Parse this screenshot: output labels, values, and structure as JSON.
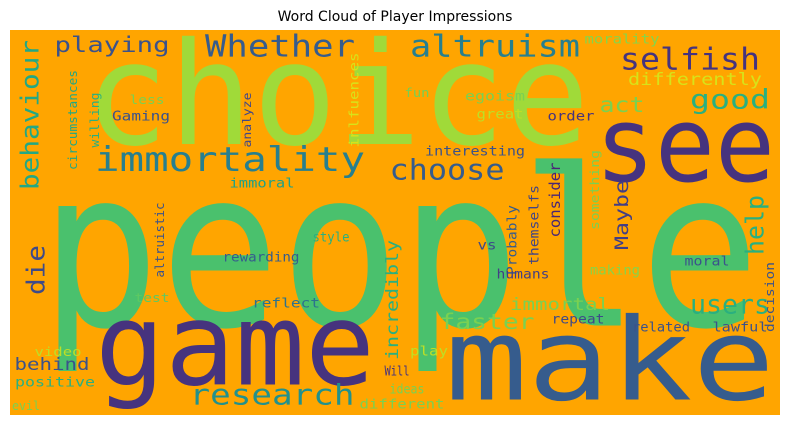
{
  "chart_data": {
    "type": "wordcloud",
    "title": "Word Cloud of Player Impressions",
    "background": "#ffa500",
    "words": [
      {
        "text": "people",
        "weight": 230,
        "color": "#4ac16d"
      },
      {
        "text": "choice",
        "weight": 150,
        "color": "#a0da39"
      },
      {
        "text": "game",
        "weight": 120,
        "color": "#46337e"
      },
      {
        "text": "make",
        "weight": 120,
        "color": "#365c8d"
      },
      {
        "text": "see",
        "weight": 110,
        "color": "#46337e"
      },
      {
        "text": "immortality",
        "weight": 36,
        "color": "#277f8e"
      },
      {
        "text": "Whether",
        "weight": 32,
        "color": "#365c8d"
      },
      {
        "text": "altruism",
        "weight": 32,
        "color": "#277f8e"
      },
      {
        "text": "selfish",
        "weight": 32,
        "color": "#46337e"
      },
      {
        "text": "playing",
        "weight": 22,
        "color": "#3b528b"
      },
      {
        "text": "choose",
        "weight": 30,
        "color": "#365c8d"
      },
      {
        "text": "good",
        "weight": 28,
        "color": "#2ab07f"
      },
      {
        "text": "act",
        "weight": 22,
        "color": "#7ad151"
      },
      {
        "text": "differently",
        "weight": 18,
        "color": "#d8e219"
      },
      {
        "text": "morality",
        "weight": 14,
        "color": "#86d549"
      },
      {
        "text": "behaviour",
        "weight": 26,
        "color": "#22a884"
      },
      {
        "text": "die",
        "weight": 26,
        "color": "#3e4a89"
      },
      {
        "text": "help",
        "weight": 26,
        "color": "#2ab07f"
      },
      {
        "text": "users",
        "weight": 28,
        "color": "#2ab07f"
      },
      {
        "text": "research",
        "weight": 30,
        "color": "#21918c"
      },
      {
        "text": "Maybe",
        "weight": 20,
        "color": "#433e85"
      },
      {
        "text": "consider",
        "weight": 16,
        "color": "#482677"
      },
      {
        "text": "themselfs",
        "weight": 14,
        "color": "#414487"
      },
      {
        "text": "Probably",
        "weight": 14,
        "color": "#365c8d"
      },
      {
        "text": "interesting",
        "weight": 14,
        "color": "#3b528b"
      },
      {
        "text": "egoism",
        "weight": 14,
        "color": "#7ad151"
      },
      {
        "text": "great",
        "weight": 14,
        "color": "#bddf26"
      },
      {
        "text": "order",
        "weight": 14,
        "color": "#46337e"
      },
      {
        "text": "fun",
        "weight": 13,
        "color": "#75d054"
      },
      {
        "text": "inlfuences",
        "weight": 14,
        "color": "#d8e219"
      },
      {
        "text": "analyze",
        "weight": 12,
        "color": "#404688"
      },
      {
        "text": "less",
        "weight": 13,
        "color": "#7ad151"
      },
      {
        "text": "Gaming",
        "weight": 14,
        "color": "#3b528b"
      },
      {
        "text": "willing",
        "weight": 13,
        "color": "#2ab07f"
      },
      {
        "text": "circumstances",
        "weight": 13,
        "color": "#22a884"
      },
      {
        "text": "immoral",
        "weight": 14,
        "color": "#1fa187"
      },
      {
        "text": "something",
        "weight": 13,
        "color": "#7ad151"
      },
      {
        "text": "decision",
        "weight": 13,
        "color": "#3b528b"
      },
      {
        "text": "vs",
        "weight": 14,
        "color": "#3e4a89"
      },
      {
        "text": "incredibly",
        "weight": 18,
        "color": "#2ab07f"
      },
      {
        "text": "immortal",
        "weight": 18,
        "color": "#7ad151"
      },
      {
        "text": "faster",
        "weight": 22,
        "color": "#7ad151"
      },
      {
        "text": "humans",
        "weight": 14,
        "color": "#433e85"
      },
      {
        "text": "making",
        "weight": 14,
        "color": "#86d549"
      },
      {
        "text": "moral",
        "weight": 14,
        "color": "#3b528b"
      },
      {
        "text": "style",
        "weight": 14,
        "color": "#2ab07f"
      },
      {
        "text": "rewarding",
        "weight": 14,
        "color": "#365c8d"
      },
      {
        "text": "altruistic",
        "weight": 13,
        "color": "#3b528b"
      },
      {
        "text": "test",
        "weight": 13,
        "color": "#5ec962"
      },
      {
        "text": "reflect",
        "weight": 14,
        "color": "#2c728e"
      },
      {
        "text": "related",
        "weight": 14,
        "color": "#3b528b"
      },
      {
        "text": "lawful",
        "weight": 14,
        "color": "#3b528b"
      },
      {
        "text": "repeat",
        "weight": 14,
        "color": "#3e4a89"
      },
      {
        "text": "play",
        "weight": 14,
        "color": "#bddf26"
      },
      {
        "text": "video",
        "weight": 13,
        "color": "#bddf26"
      },
      {
        "text": "behind",
        "weight": 18,
        "color": "#3b528b"
      },
      {
        "text": "positive",
        "weight": 14,
        "color": "#2ab07f"
      },
      {
        "text": "evil",
        "weight": 13,
        "color": "#7ad151"
      },
      {
        "text": "Will",
        "weight": 14,
        "color": "#46337e"
      },
      {
        "text": "ideas",
        "weight": 14,
        "color": "#7ad151"
      },
      {
        "text": "different",
        "weight": 14,
        "color": "#7ad151"
      }
    ]
  }
}
